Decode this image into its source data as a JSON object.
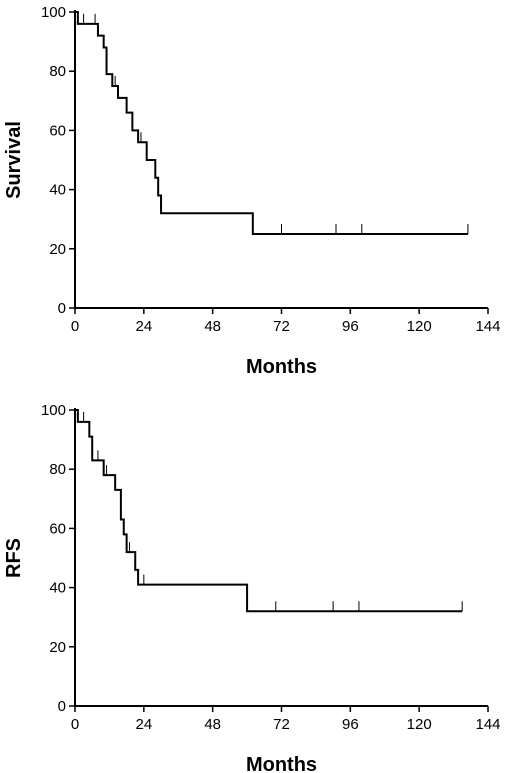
{
  "chart_data": [
    {
      "type": "line",
      "step": "post",
      "xlabel": "Months",
      "ylabel": "Survival",
      "xlim": [
        0,
        144
      ],
      "ylim": [
        0,
        100
      ],
      "xticks": [
        "0",
        "24",
        "48",
        "72",
        "96",
        "120",
        "144"
      ],
      "yticks": [
        "0",
        "20",
        "40",
        "60",
        "80",
        "100"
      ],
      "grid": false,
      "series": [
        {
          "x": [
            0,
            1,
            8,
            10,
            11,
            13,
            15,
            18,
            20,
            22,
            25,
            28,
            29,
            30,
            62,
            137
          ],
          "y": [
            100,
            96,
            92,
            88,
            79,
            75,
            71,
            66,
            60,
            56,
            50,
            44,
            38,
            32,
            25,
            25
          ],
          "censored_x": [
            3,
            7,
            14,
            23,
            30,
            72,
            91,
            100,
            137
          ]
        }
      ]
    },
    {
      "type": "line",
      "step": "post",
      "xlabel": "Months",
      "ylabel": "RFS",
      "xlim": [
        0,
        144
      ],
      "ylim": [
        0,
        100
      ],
      "xticks": [
        "0",
        "24",
        "48",
        "72",
        "96",
        "120",
        "144"
      ],
      "yticks": [
        "0",
        "20",
        "40",
        "60",
        "80",
        "100"
      ],
      "grid": false,
      "series": [
        {
          "x": [
            0,
            1,
            5,
            6,
            10,
            14,
            16,
            17,
            18,
            21,
            22,
            60,
            135
          ],
          "y": [
            100,
            96,
            91,
            83,
            78,
            73,
            63,
            58,
            52,
            46,
            41,
            32,
            32
          ],
          "censored_x": [
            3,
            8,
            11,
            19,
            24,
            70,
            90,
            99,
            135
          ]
        }
      ]
    }
  ]
}
